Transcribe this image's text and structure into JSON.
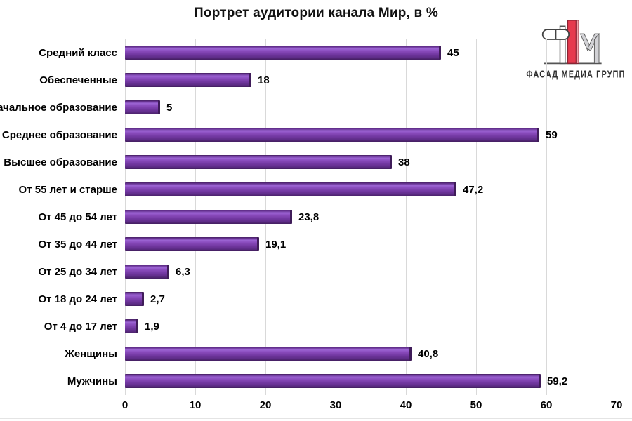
{
  "chart_data": {
    "type": "bar",
    "orientation": "horizontal",
    "title": "Портрет аудитории канала Мир, в %",
    "categories": [
      "Средний класс",
      "Обеспеченные",
      "Начальное образование",
      "Среднее образование",
      "Высшее образование",
      "От 55 лет и старше",
      "От 45 до 54 лет",
      "От 35 до 44 лет",
      "От 25 до 34 лет",
      "От 18 до 24 лет",
      "От 4 до 17 лет",
      "Женщины",
      "Мужчины"
    ],
    "values": [
      45,
      18,
      5,
      59,
      38,
      47.2,
      23.8,
      19.1,
      6.3,
      2.7,
      1.9,
      40.8,
      59.2
    ],
    "value_labels": [
      "45",
      "18",
      "5",
      "59",
      "38",
      "47,2",
      "23,8",
      "19,1",
      "6,3",
      "2,7",
      "1,9",
      "40,8",
      "59,2"
    ],
    "xlabel": "",
    "ylabel": "",
    "xlim": [
      0,
      70
    ],
    "xticks": [
      0,
      10,
      20,
      30,
      40,
      50,
      60,
      70
    ],
    "xtick_labels": [
      "0",
      "10",
      "20",
      "30",
      "40",
      "50",
      "60",
      "70"
    ],
    "grid": true,
    "legend_position": "none",
    "bar_color_main": "#7d3fae",
    "bar_color_highlight": "#9c64d4",
    "bar_color_shadow": "#431f60",
    "gridline_color": "#d9d9d9"
  },
  "logo": {
    "text": "ФАСАД МЕДИА ГРУПП",
    "red": "#e63a4e",
    "red_dark": "#8a2433",
    "gray": "#d2d2d6",
    "outline": "#555555"
  }
}
